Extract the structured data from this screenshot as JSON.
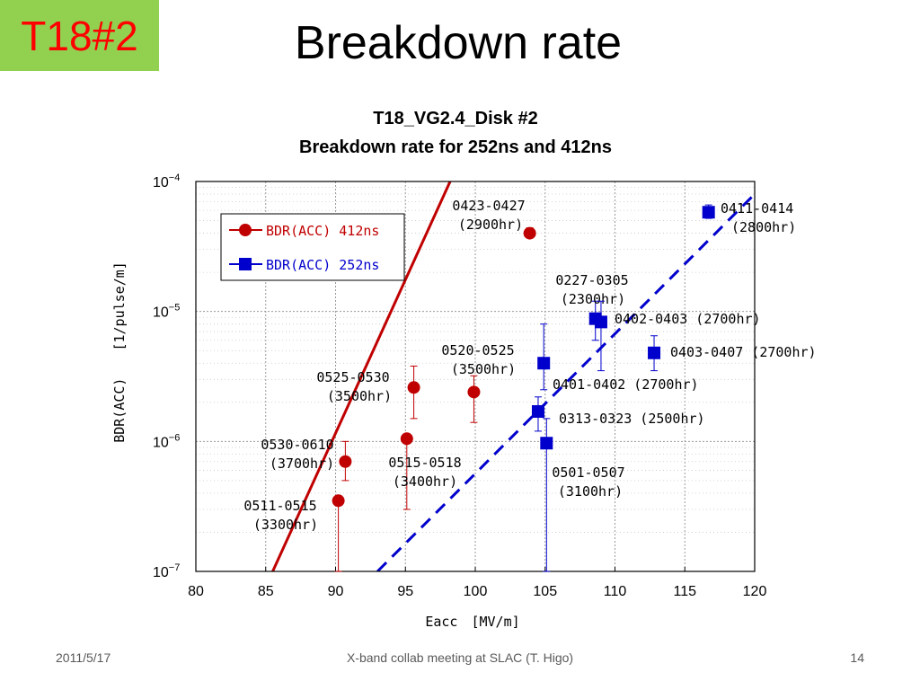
{
  "slide": {
    "badge": "T18#2",
    "title": "Breakdown rate",
    "footer_date": "2011/5/17",
    "footer_center": "X-band collab meeting at SLAC (T. Higo)",
    "footer_page": "14"
  },
  "chart_data": {
    "type": "scatter",
    "title_lines": [
      "T18_VG2.4_Disk #2",
      "Breakdown rate for 252ns and 412ns"
    ],
    "xlabel": "Eacc　[MV/m]",
    "ylabel": "BDR(ACC)　　[1/pulse/m]",
    "xlim": [
      80,
      120
    ],
    "ylim": [
      1e-07,
      0.0001
    ],
    "yscale": "log",
    "x_ticks": [
      "80",
      "85",
      "90",
      "95",
      "100",
      "105",
      "110",
      "115",
      "120"
    ],
    "y_ticks": [
      {
        "base": "10",
        "exp": "-4"
      },
      {
        "base": "10",
        "exp": "-5"
      },
      {
        "base": "10",
        "exp": "-6"
      },
      {
        "base": "10",
        "exp": "-7"
      }
    ],
    "grid": true,
    "legend_position": "top-left",
    "series": [
      {
        "name": "BDR(ACC) 412ns",
        "color": "#c00000",
        "marker": "circle",
        "fit": {
          "type": "exponential",
          "style": "solid",
          "x1": 85.5,
          "y1": 1e-07,
          "x2": 98.2,
          "y2": 0.0001
        },
        "points": [
          {
            "x": 90.2,
            "y": 3.5e-07,
            "err_lo": 1e-07,
            "err_hi": 3.5e-07,
            "label": [
              "0511-0515",
              "(3300hr)"
            ]
          },
          {
            "x": 90.7,
            "y": 7e-07,
            "err_lo": 5e-07,
            "err_hi": 1e-06,
            "label": [
              "0530-0610",
              "(3700hr)"
            ]
          },
          {
            "x": 95.1,
            "y": 1.05e-06,
            "err_lo": 3e-07,
            "err_hi": 1.05e-06,
            "label": [
              "0515-0518",
              "(3400hr)"
            ]
          },
          {
            "x": 95.6,
            "y": 2.6e-06,
            "err_lo": 1.5e-06,
            "err_hi": 3.8e-06,
            "label": [
              "0525-0530",
              "(3500hr)"
            ]
          },
          {
            "x": 99.9,
            "y": 2.4e-06,
            "err_lo": 1.4e-06,
            "err_hi": 3.2e-06,
            "label": [
              "0520-0525",
              "(3500hr)"
            ]
          },
          {
            "x": 103.9,
            "y": 4e-05,
            "err_lo": 3.7e-05,
            "err_hi": 4.4e-05,
            "label": [
              "0423-0427",
              "(2900hr)"
            ]
          }
        ]
      },
      {
        "name": "BDR(ACC) 252ns",
        "color": "#0000cc",
        "marker": "square",
        "fit": {
          "type": "exponential",
          "style": "dashed",
          "x1": 93,
          "y1": 1e-07,
          "x2": 120,
          "y2": 8e-05
        },
        "points": [
          {
            "x": 104.5,
            "y": 1.7e-06,
            "err_lo": 1.2e-06,
            "err_hi": 2.2e-06,
            "label": [
              "0313-0323 (2500hr)"
            ]
          },
          {
            "x": 104.9,
            "y": 4e-06,
            "err_lo": 2.5e-06,
            "err_hi": 8e-06,
            "label": [
              "0401-0402 (2700hr)"
            ]
          },
          {
            "x": 105.1,
            "y": 9.7e-07,
            "err_lo": 1e-07,
            "err_hi": 1.5e-06,
            "label": [
              "0501-0507",
              "(3100hr)"
            ]
          },
          {
            "x": 108.6,
            "y": 8.8e-06,
            "err_lo": 6e-06,
            "err_hi": 1.2e-05,
            "label": [
              "0227-0305",
              "(2300hr)"
            ]
          },
          {
            "x": 109.0,
            "y": 8.3e-06,
            "err_lo": 3.5e-06,
            "err_hi": 1.2e-05,
            "label": [
              "0402-0403 (2700hr)"
            ]
          },
          {
            "x": 112.8,
            "y": 4.8e-06,
            "err_lo": 3.5e-06,
            "err_hi": 6.5e-06,
            "label": [
              "0403-0407 (2700hr)"
            ]
          },
          {
            "x": 116.7,
            "y": 5.8e-05,
            "err_lo": 5.2e-05,
            "err_hi": 6.6e-05,
            "label": [
              "0411-0414",
              "(2800hr)"
            ]
          }
        ]
      }
    ]
  }
}
